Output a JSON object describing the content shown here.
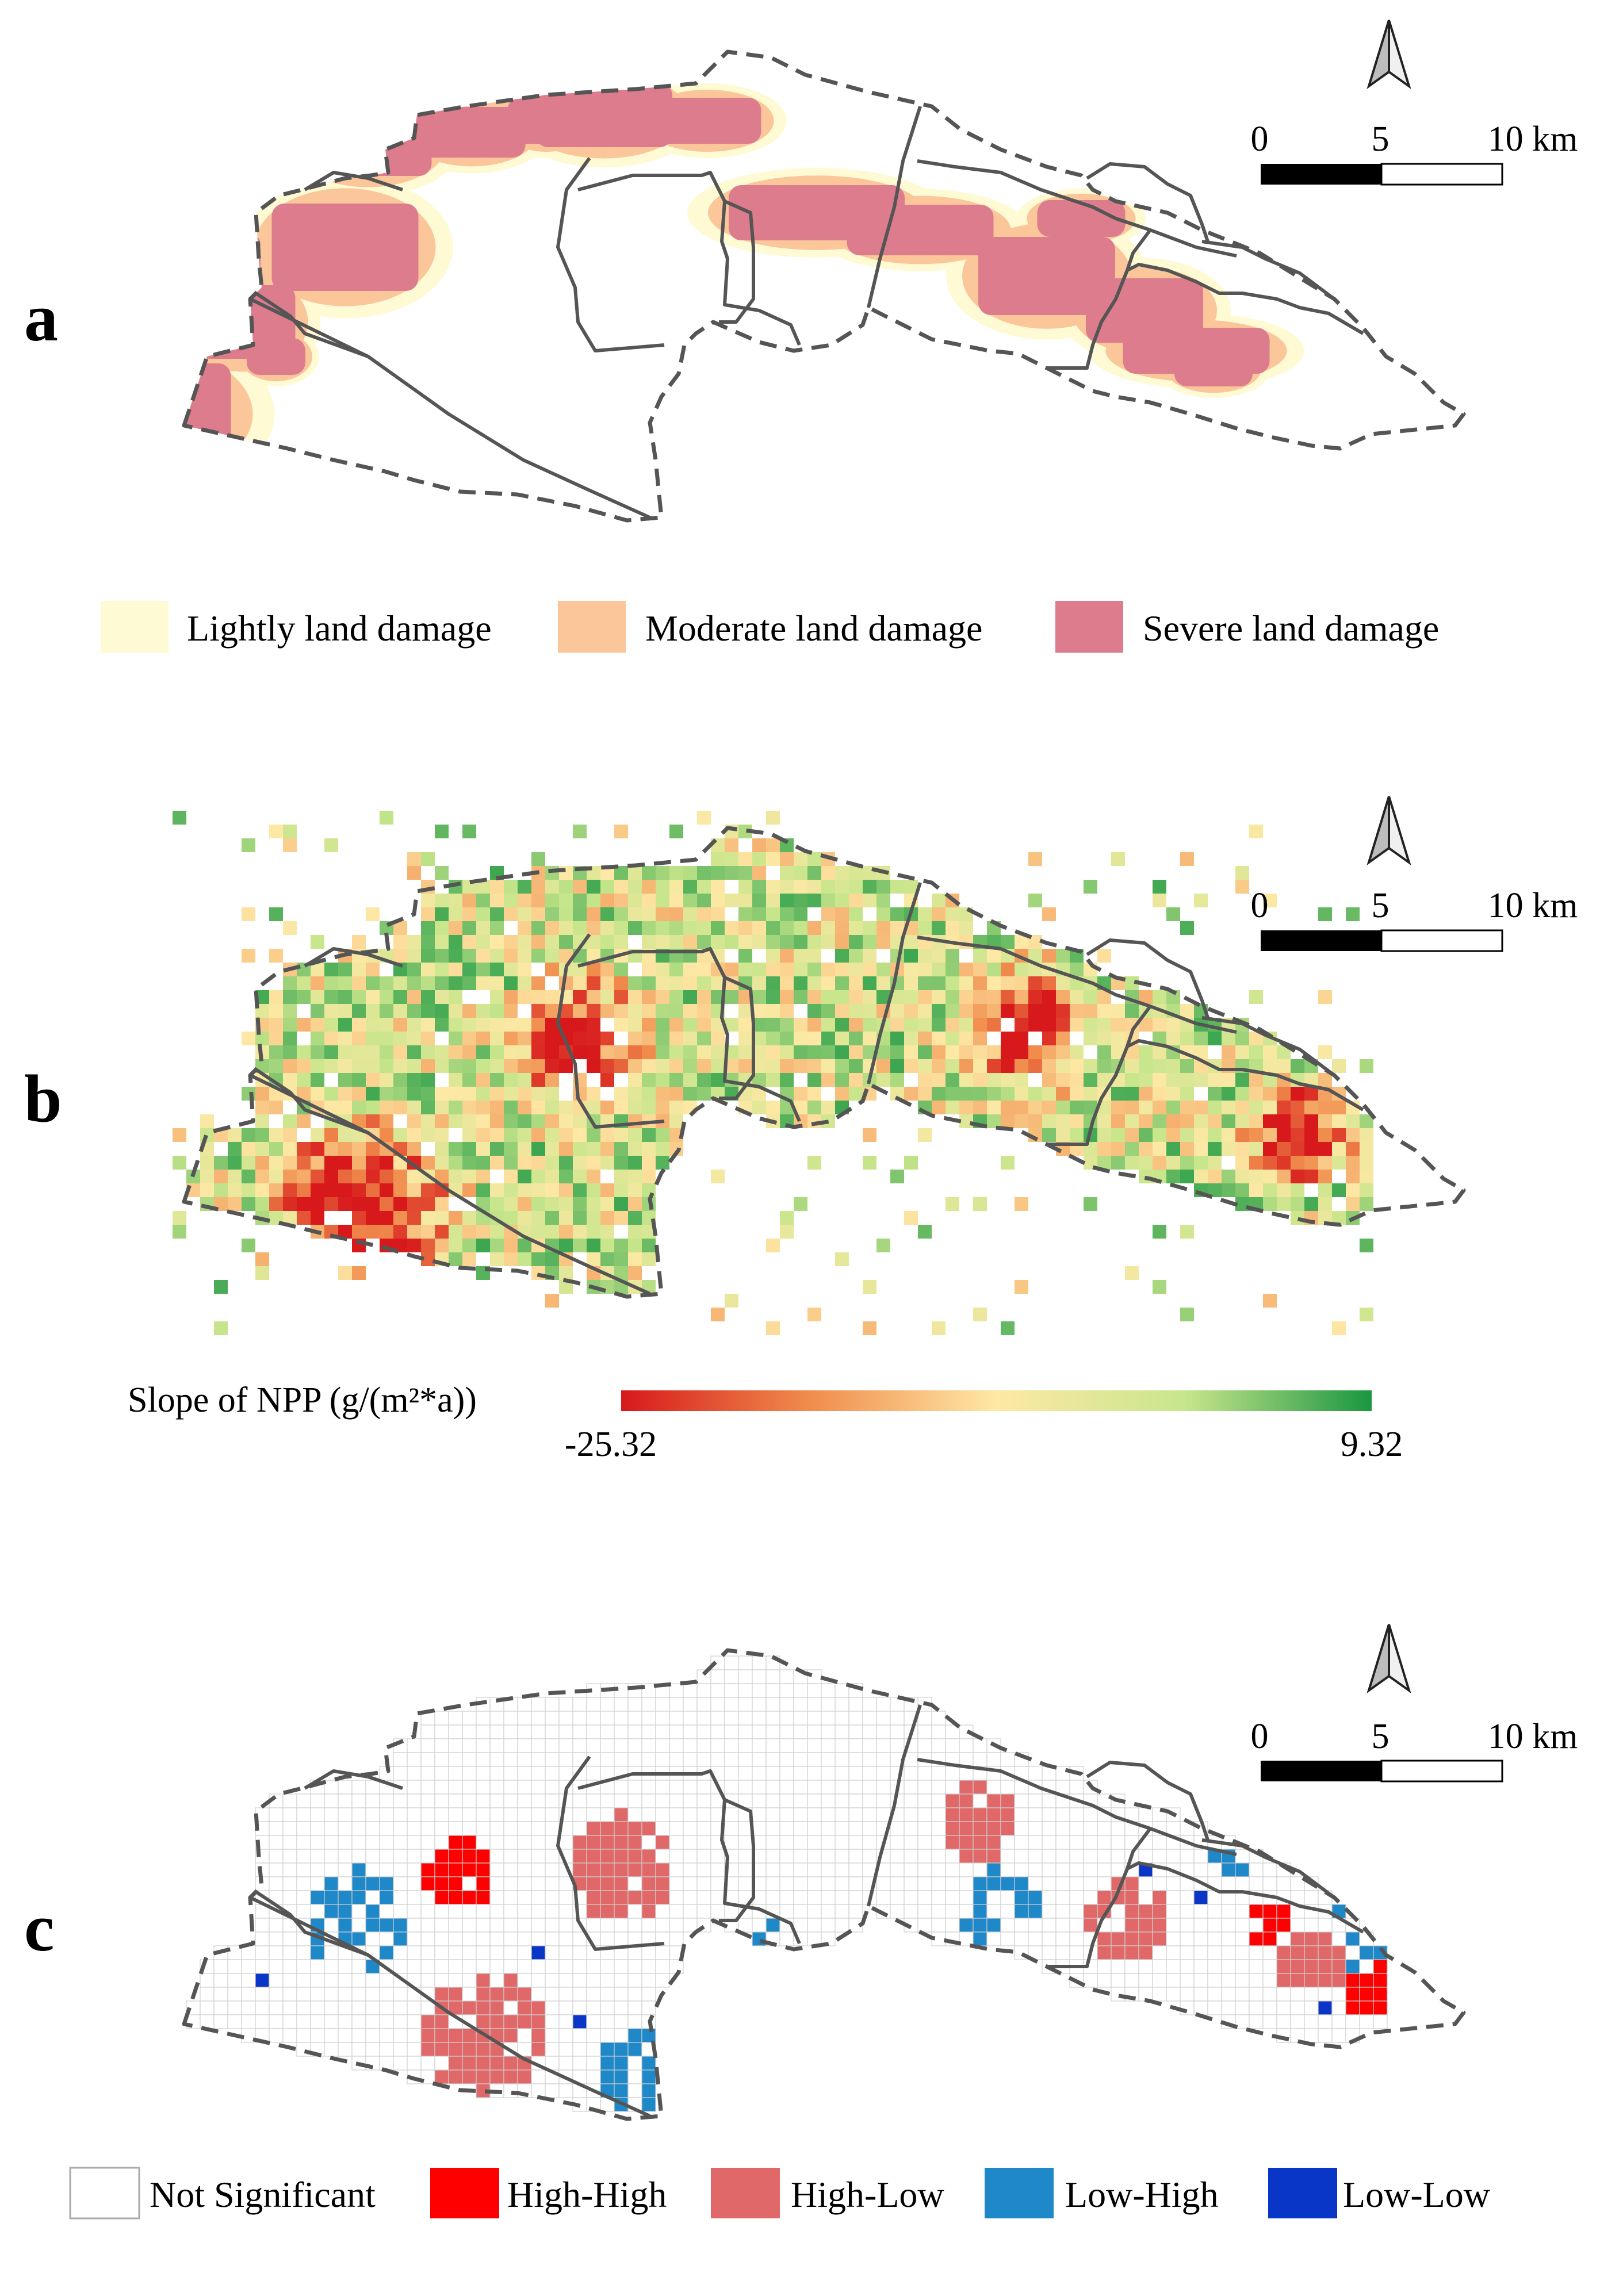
{
  "panels": [
    {
      "letter": "a",
      "scale_labels": [
        "0",
        "5",
        "10 km"
      ],
      "legend": [
        {
          "label": "Lightly land damage",
          "color": "#fefad3"
        },
        {
          "label": "Moderate land damage",
          "color": "#fac69a"
        },
        {
          "label": "Severe land damage",
          "color": "#dc7c8c"
        }
      ]
    },
    {
      "letter": "b",
      "scale_labels": [
        "0",
        "5",
        "10 km"
      ],
      "colorbar": {
        "title": "Slope of NPP (g/(m²*a))",
        "min_label": "-25.32",
        "max_label": "9.32",
        "min": -25.32,
        "max": 9.32,
        "colors": [
          "#d7191c",
          "#f08c4c",
          "#fee8a5",
          "#c8e68c",
          "#1a9641"
        ]
      }
    },
    {
      "letter": "c",
      "scale_labels": [
        "0",
        "5",
        "10 km"
      ],
      "legend": [
        {
          "label": "Not Significant",
          "color": "#ffffff"
        },
        {
          "label": "High-High",
          "color": "#ff0000"
        },
        {
          "label": "High-Low",
          "color": "#e06868"
        },
        {
          "label": "Low-High",
          "color": "#1e88c8"
        },
        {
          "label": "Low-Low",
          "color": "#0a36c8"
        }
      ]
    }
  ],
  "boundary_color": "#555555"
}
